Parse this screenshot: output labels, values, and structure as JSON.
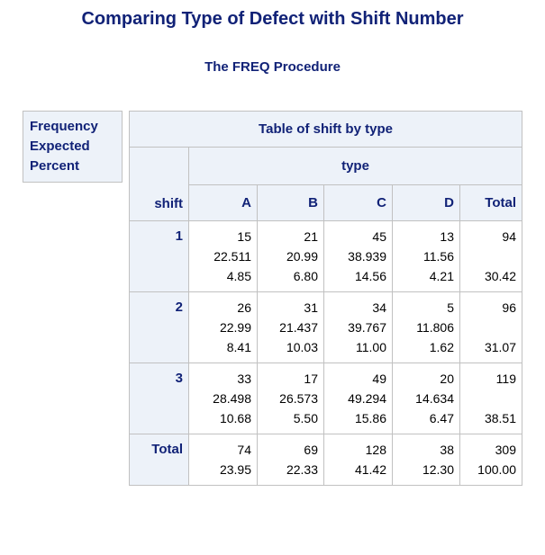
{
  "title": "Comparing Type of Defect with Shift Number",
  "subtitle": "The FREQ Procedure",
  "legend": [
    "Frequency",
    "Expected",
    "Percent"
  ],
  "table": {
    "caption": "Table of shift by type",
    "col_var": "type",
    "row_var": "shift",
    "columns": [
      "A",
      "B",
      "C",
      "D",
      "Total"
    ],
    "rows": [
      {
        "label": "1",
        "cells": [
          [
            "15",
            "22.511",
            "4.85"
          ],
          [
            "21",
            "20.99",
            "6.80"
          ],
          [
            "45",
            "38.939",
            "14.56"
          ],
          [
            "13",
            "11.56",
            "4.21"
          ],
          [
            "94",
            "",
            "30.42"
          ]
        ]
      },
      {
        "label": "2",
        "cells": [
          [
            "26",
            "22.99",
            "8.41"
          ],
          [
            "31",
            "21.437",
            "10.03"
          ],
          [
            "34",
            "39.767",
            "11.00"
          ],
          [
            "5",
            "11.806",
            "1.62"
          ],
          [
            "96",
            "",
            "31.07"
          ]
        ]
      },
      {
        "label": "3",
        "cells": [
          [
            "33",
            "28.498",
            "10.68"
          ],
          [
            "17",
            "26.573",
            "5.50"
          ],
          [
            "49",
            "49.294",
            "15.86"
          ],
          [
            "20",
            "14.634",
            "6.47"
          ],
          [
            "119",
            "",
            "38.51"
          ]
        ]
      }
    ],
    "total_row": {
      "label": "Total",
      "cells": [
        [
          "74",
          "23.95"
        ],
        [
          "69",
          "22.33"
        ],
        [
          "128",
          "41.42"
        ],
        [
          "38",
          "12.30"
        ],
        [
          "309",
          "100.00"
        ]
      ]
    }
  }
}
